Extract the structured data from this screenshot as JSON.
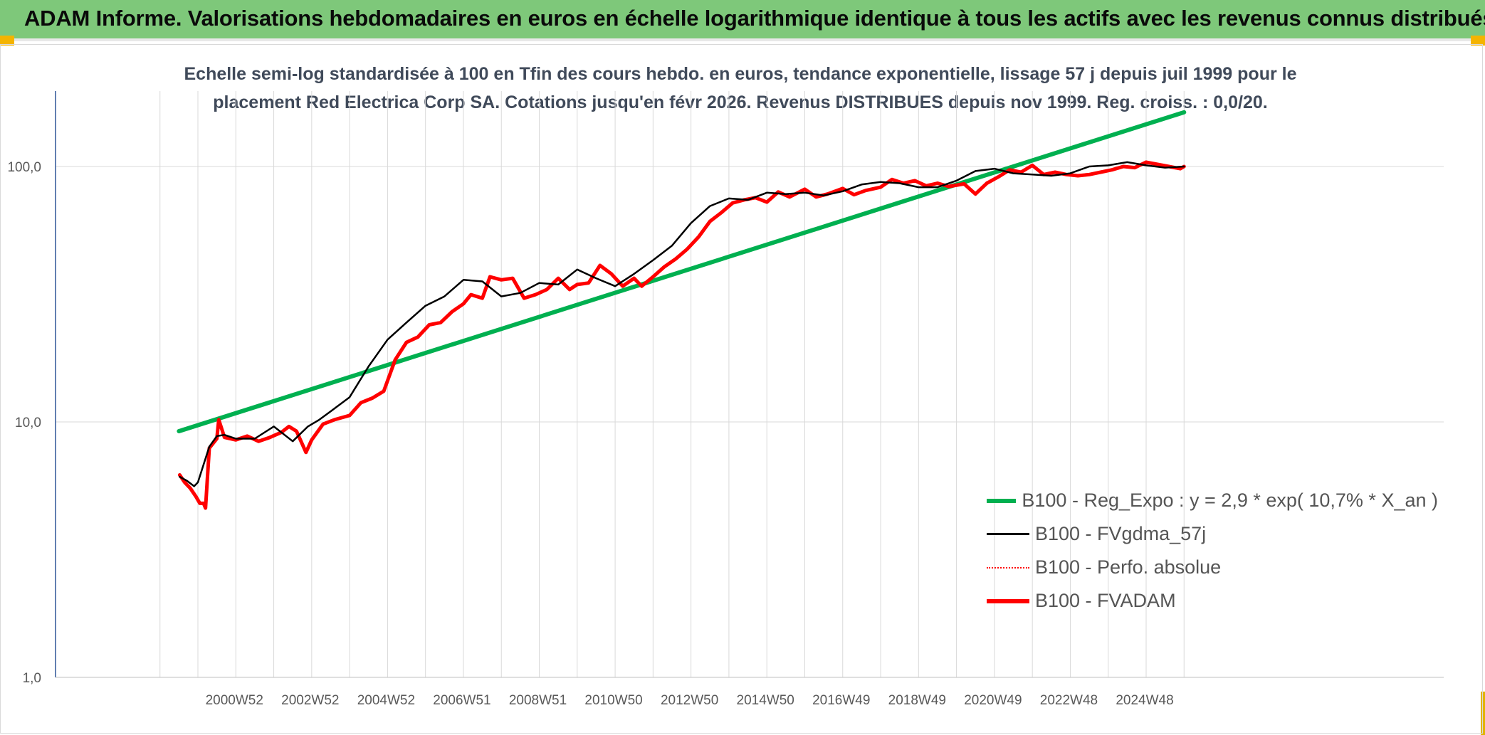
{
  "banner": {
    "title": "ADAM Informe. Valorisations hebdomadaires en euros en échelle logarithmique identique à tous les actifs avec les revenus connus distribués"
  },
  "colors": {
    "banner_bg": "#7ec87a",
    "regression": "#00b050",
    "smoothed": "#000000",
    "perf_absolue": "#ff0000",
    "fvadam": "#ff0000",
    "gridline": "#d9d9d9",
    "axis": "#2f5597"
  },
  "chart_data": {
    "type": "line",
    "title_line1": "Echelle semi-log standardisée à 100 en Tfin des cours hebdo. en euros, tendance exponentielle, lissage 57 j depuis juil 1999 pour le",
    "title_line2": "placement Red Electrica Corp SA. Cotations jusqu'en févr 2026. Revenus DISTRIBUES depuis nov 1999. Reg. croiss. : 0,0/20.",
    "y_scale": "log",
    "ylim": [
      1,
      180
    ],
    "y_ticks": [
      "1,0",
      "10,0",
      "100,0"
    ],
    "y_tick_values": [
      1,
      10,
      100
    ],
    "xlim": [
      1998.0,
      2026.2
    ],
    "x_ticks": [
      "2000W52",
      "2002W52",
      "2004W52",
      "2006W51",
      "2008W51",
      "2010W50",
      "2012W50",
      "2014W50",
      "2016W49",
      "2018W49",
      "2020W49",
      "2022W48",
      "2024W48"
    ],
    "x_tick_values": [
      2001.0,
      2003.0,
      2005.0,
      2007.0,
      2009.0,
      2011.0,
      2013.0,
      2015.0,
      2017.0,
      2019.0,
      2021.0,
      2023.0,
      2025.0
    ],
    "grid": true,
    "legend_position": "bottom-right",
    "series": [
      {
        "name": "B100 - Reg_Expo : y = 2,9 * exp( 10,7% *  X_an )",
        "style": "green-thick",
        "x": [
          1999.5,
          2026.0
        ],
        "y": [
          9.2,
          163
        ]
      },
      {
        "name": "B100 - FVgdma_57j",
        "style": "black-thin",
        "x": [
          1999.52,
          1999.7,
          1999.9,
          2000.0,
          2000.3,
          2000.5,
          2000.7,
          2001.0,
          2001.5,
          2002.0,
          2002.5,
          2002.9,
          2003.2,
          2003.5,
          2004.0,
          2004.5,
          2005.0,
          2005.5,
          2006.0,
          2006.5,
          2007.0,
          2007.5,
          2008.0,
          2008.5,
          2009.0,
          2009.5,
          2010.0,
          2010.5,
          2011.0,
          2011.5,
          2012.0,
          2012.5,
          2013.0,
          2013.5,
          2014.0,
          2014.5,
          2015.0,
          2015.5,
          2016.0,
          2016.5,
          2017.0,
          2017.5,
          2018.0,
          2018.5,
          2019.0,
          2019.5,
          2020.0,
          2020.5,
          2021.0,
          2021.5,
          2022.0,
          2022.5,
          2023.0,
          2023.5,
          2024.0,
          2024.5,
          2025.0,
          2025.5,
          2026.0
        ],
        "y": [
          6.1,
          5.9,
          5.6,
          5.8,
          8.0,
          8.8,
          8.9,
          8.6,
          8.6,
          9.6,
          8.4,
          9.6,
          10.2,
          11.0,
          12.5,
          16.5,
          21.0,
          24.5,
          28.5,
          31.0,
          36.0,
          35.5,
          31.0,
          32.0,
          35.0,
          34.5,
          39.5,
          36.5,
          34.0,
          38.0,
          43.0,
          49.0,
          60.0,
          70.0,
          75.0,
          74.0,
          79.0,
          78.0,
          79.0,
          77.0,
          80.0,
          85.0,
          87.0,
          86.0,
          83.0,
          83.0,
          88.0,
          96.0,
          98.0,
          94.0,
          93.0,
          92.0,
          94.0,
          100.0,
          101.0,
          104.0,
          101.0,
          99.0,
          100.0
        ]
      },
      {
        "name": "B100 - Perfo. absolue",
        "style": "red-dotted",
        "x": [],
        "y": []
      },
      {
        "name": "B100 - FVADAM",
        "style": "red-thick",
        "x": [
          1999.52,
          1999.65,
          1999.8,
          1999.95,
          2000.05,
          2000.15,
          2000.2,
          2000.3,
          2000.5,
          2000.55,
          2000.7,
          2001.0,
          2001.3,
          2001.6,
          2001.9,
          2002.2,
          2002.4,
          2002.6,
          2002.85,
          2003.0,
          2003.3,
          2003.6,
          2004.0,
          2004.3,
          2004.6,
          2004.9,
          2005.2,
          2005.5,
          2005.8,
          2006.1,
          2006.4,
          2006.7,
          2007.0,
          2007.2,
          2007.5,
          2007.7,
          2008.0,
          2008.3,
          2008.6,
          2008.9,
          2009.2,
          2009.5,
          2009.8,
          2010.0,
          2010.3,
          2010.6,
          2010.9,
          2011.2,
          2011.5,
          2011.7,
          2012.0,
          2012.3,
          2012.6,
          2012.9,
          2013.2,
          2013.5,
          2013.8,
          2014.1,
          2014.4,
          2014.7,
          2015.0,
          2015.3,
          2015.6,
          2016.0,
          2016.3,
          2016.6,
          2017.0,
          2017.3,
          2017.6,
          2018.0,
          2018.3,
          2018.6,
          2018.9,
          2019.2,
          2019.5,
          2019.8,
          2020.2,
          2020.5,
          2020.8,
          2021.1,
          2021.4,
          2021.7,
          2022.0,
          2022.3,
          2022.6,
          2022.9,
          2023.2,
          2023.5,
          2023.8,
          2024.1,
          2024.4,
          2024.7,
          2025.0,
          2025.3,
          2025.6,
          2025.9,
          2026.0
        ],
        "y": [
          6.2,
          5.8,
          5.5,
          5.1,
          4.8,
          4.8,
          4.6,
          7.9,
          8.6,
          10.2,
          8.7,
          8.5,
          8.8,
          8.4,
          8.7,
          9.1,
          9.6,
          9.2,
          7.6,
          8.5,
          9.8,
          10.2,
          10.6,
          11.9,
          12.4,
          13.2,
          17.5,
          20.5,
          21.5,
          24.0,
          24.5,
          27.0,
          29.0,
          31.5,
          30.5,
          37.0,
          36.0,
          36.5,
          30.5,
          31.5,
          33.0,
          36.5,
          33.0,
          34.5,
          35.0,
          41.0,
          38.0,
          34.0,
          36.5,
          34.0,
          37.0,
          40.5,
          43.5,
          47.5,
          53.0,
          61.0,
          66.0,
          72.0,
          74.0,
          75.5,
          72.5,
          79.5,
          76.0,
          81.5,
          76.0,
          78.0,
          82.0,
          77.5,
          80.5,
          83.0,
          89.0,
          86.0,
          88.0,
          84.0,
          86.0,
          83.5,
          85.5,
          78.0,
          86.0,
          91.0,
          97.0,
          95.0,
          101.0,
          93.0,
          95.0,
          93.0,
          92.0,
          93.0,
          95.0,
          97.0,
          100.0,
          99.0,
          104.0,
          102.0,
          100.0,
          98.0,
          100.0
        ]
      }
    ]
  }
}
